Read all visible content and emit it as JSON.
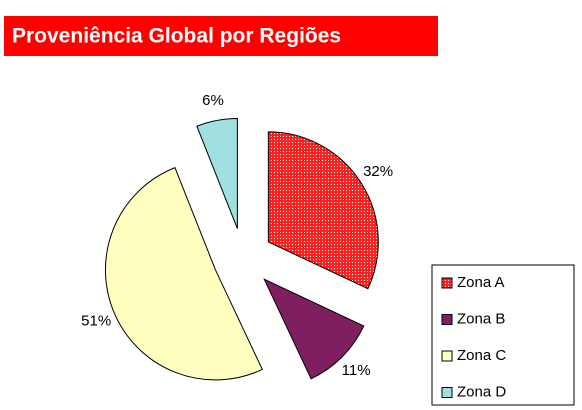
{
  "chart_data": {
    "type": "pie",
    "title": "Proveniência Global por Regiões",
    "categories": [
      "Zona A",
      "Zona B",
      "Zona C",
      "Zona D"
    ],
    "values": [
      32,
      11,
      51,
      6
    ],
    "value_labels": [
      "32%",
      "11%",
      "51%",
      "6%"
    ],
    "colors": [
      "#ff2020",
      "#7f1f5f",
      "#ffffc0",
      "#a0e0e0"
    ],
    "legend": "lower right"
  }
}
